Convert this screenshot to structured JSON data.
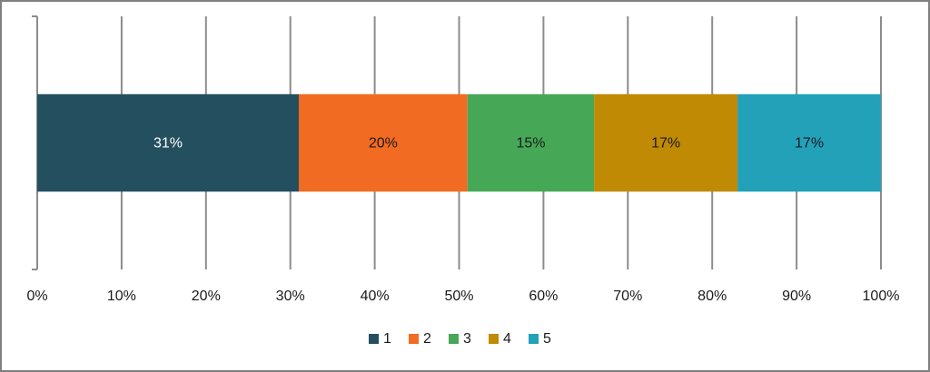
{
  "chart_data": {
    "type": "stacked-bar-horizontal",
    "categories": [
      null
    ],
    "series": [
      {
        "name": "1",
        "color": "#244f5f",
        "label_color": "#ffffff",
        "values": [
          31
        ],
        "value_labels": [
          "31%"
        ]
      },
      {
        "name": "2",
        "color": "#f26b23",
        "label_color": "#1a1a1a",
        "values": [
          20
        ],
        "value_labels": [
          "20%"
        ]
      },
      {
        "name": "3",
        "color": "#46a857",
        "label_color": "#1a1a1a",
        "values": [
          15
        ],
        "value_labels": [
          "15%"
        ]
      },
      {
        "name": "4",
        "color": "#c18a04",
        "label_color": "#1a1a1a",
        "values": [
          17
        ],
        "value_labels": [
          "17%"
        ]
      },
      {
        "name": "5",
        "color": "#23a1b9",
        "label_color": "#1a1a1a",
        "values": [
          17
        ],
        "value_labels": [
          "17%"
        ]
      }
    ],
    "xlim": [
      0,
      100
    ],
    "xticks": [
      {
        "value": 0,
        "label": "0%"
      },
      {
        "value": 10,
        "label": "10%"
      },
      {
        "value": 20,
        "label": "20%"
      },
      {
        "value": 30,
        "label": "30%"
      },
      {
        "value": 40,
        "label": "40%"
      },
      {
        "value": 50,
        "label": "50%"
      },
      {
        "value": 60,
        "label": "60%"
      },
      {
        "value": 70,
        "label": "70%"
      },
      {
        "value": 80,
        "label": "80%"
      },
      {
        "value": 90,
        "label": "90%"
      },
      {
        "value": 100,
        "label": "100%"
      }
    ],
    "grid": true,
    "legend": "bottom"
  }
}
